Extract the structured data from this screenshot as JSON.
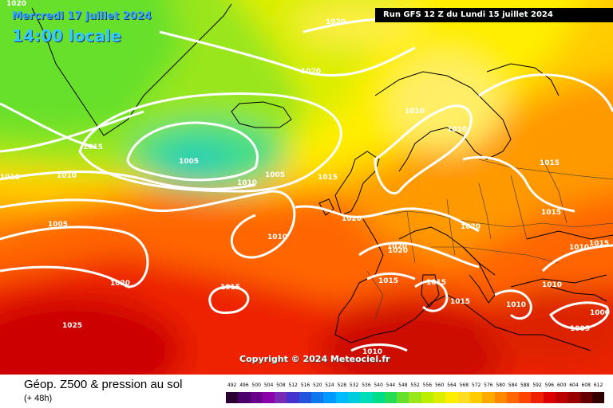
{
  "header": {
    "date": "Mercredi 17 juillet 2024",
    "time": "14:00 locale",
    "run": "Run GFS 12 Z du Lundi 15 juillet 2024"
  },
  "copyright": "Copyright © 2024 Meteociel.fr",
  "legend": {
    "title": "Géop. Z500 & pression au sol",
    "subtitle": "(+ 48h)",
    "scale_values": [
      "492",
      "496",
      "500",
      "504",
      "508",
      "512",
      "516",
      "520",
      "524",
      "528",
      "532",
      "536",
      "540",
      "544",
      "548",
      "552",
      "556",
      "560",
      "564",
      "568",
      "572",
      "576",
      "580",
      "584",
      "588",
      "592",
      "596",
      "600",
      "604",
      "608",
      "612"
    ],
    "scale_colors": [
      "#2a0033",
      "#4a006a",
      "#6a008a",
      "#8a00aa",
      "#7a2ab5",
      "#4433cc",
      "#2255dd",
      "#1177ee",
      "#0099ff",
      "#00bbff",
      "#00ccdd",
      "#00ddbb",
      "#00dd88",
      "#22dd55",
      "#66e02a",
      "#99e61a",
      "#bbee00",
      "#ddee00",
      "#ffee00",
      "#ffdd22",
      "#ffcc00",
      "#ffaa00",
      "#ff8800",
      "#ff6600",
      "#ff4400",
      "#ee2200",
      "#dd0000",
      "#bb0000",
      "#990000",
      "#660000",
      "#330000"
    ]
  },
  "isobars": {
    "corner": "1020",
    "labels": [
      "1020",
      "1020",
      "1015",
      "1005",
      "1010",
      "1005",
      "1010",
      "1010",
      "1015",
      "1005",
      "1010",
      "1020",
      "1020",
      "1020",
      "1015",
      "1015",
      "1015",
      "1020",
      "1010",
      "1010",
      "1015",
      "1015",
      "1010",
      "1010",
      "1010",
      "1005",
      "1000",
      "1015",
      "1015",
      "1025",
      "1020",
      "1010"
    ]
  }
}
